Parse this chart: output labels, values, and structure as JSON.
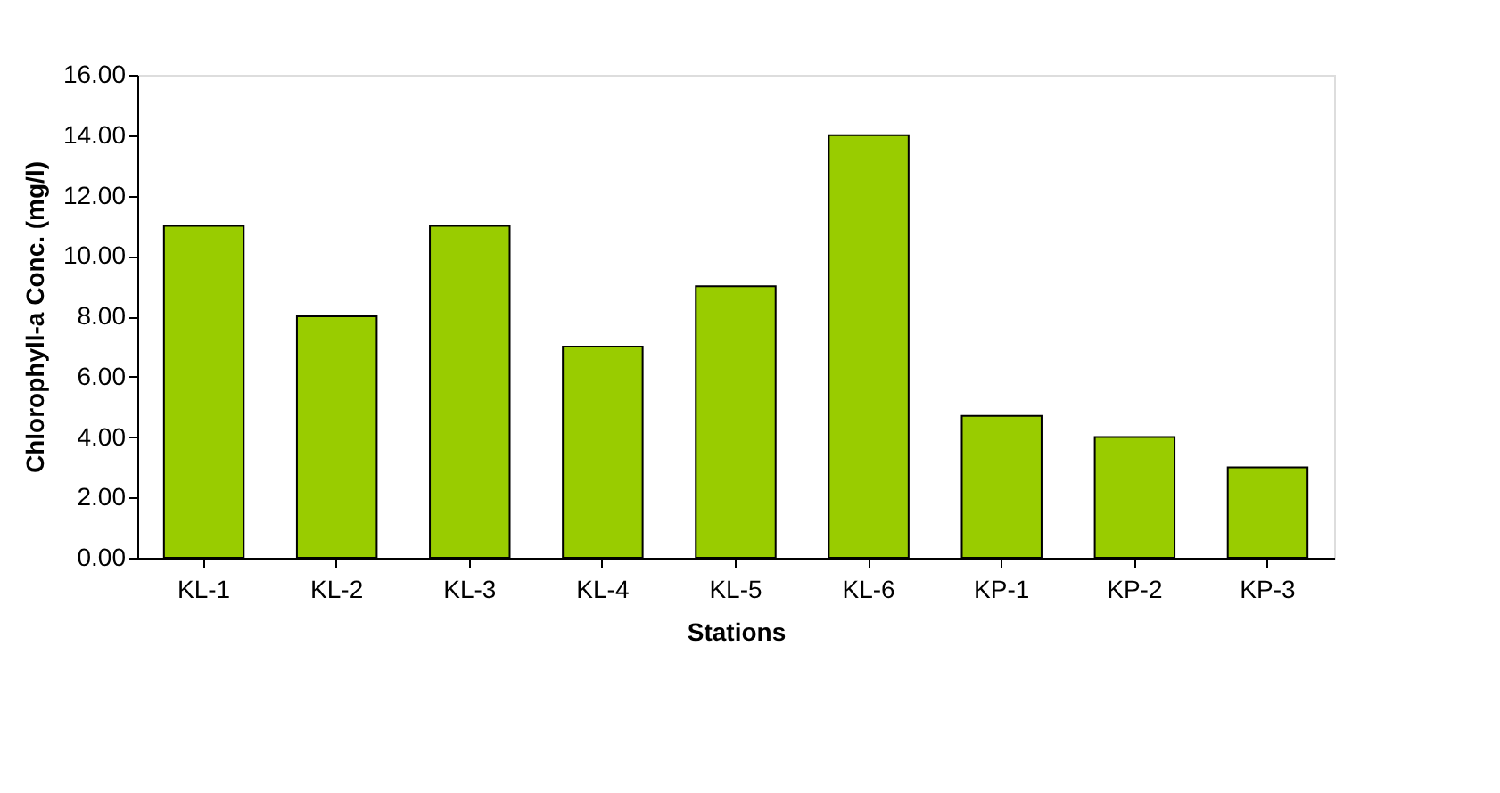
{
  "chart_data": {
    "type": "bar",
    "xlabel": "Stations",
    "ylabel": "Chlorophyll-a Conc. (mg/l)",
    "categories": [
      "KL-1",
      "KL-2",
      "KL-3",
      "KL-4",
      "KL-5",
      "KL-6",
      "KP-1",
      "KP-2",
      "KP-3"
    ],
    "values": [
      11.0,
      8.0,
      11.0,
      7.0,
      9.0,
      14.0,
      4.7,
      4.0,
      3.0
    ],
    "color": "#99cc00",
    "ylim": [
      0,
      16
    ],
    "yticks": [
      {
        "value": 0,
        "label": "0.00"
      },
      {
        "value": 2,
        "label": "2.00"
      },
      {
        "value": 4,
        "label": "4.00"
      },
      {
        "value": 6,
        "label": "6.00"
      },
      {
        "value": 8,
        "label": "8.00"
      },
      {
        "value": 10,
        "label": "10.00"
      },
      {
        "value": 12,
        "label": "12.00"
      },
      {
        "value": 14,
        "label": "14.00"
      },
      {
        "value": 16,
        "label": "16.00"
      }
    ],
    "grid": false
  }
}
